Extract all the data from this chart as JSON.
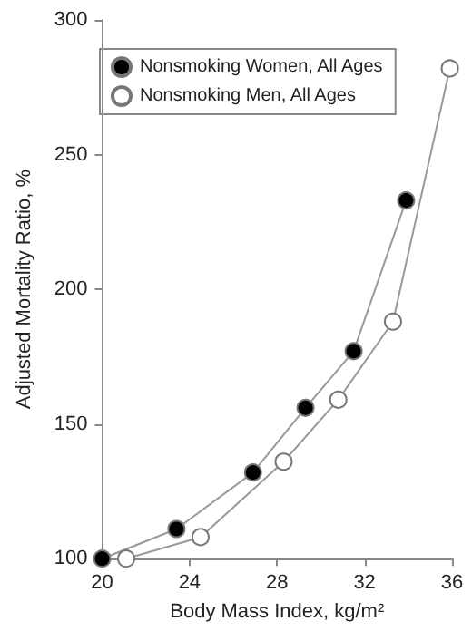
{
  "chart_data": {
    "type": "line",
    "xlabel": "Body Mass Index, kg/m²",
    "ylabel": "Adjusted Mortality Ratio, %",
    "series": [
      {
        "name": "Nonsmoking Women, All Ages",
        "color": "#000000",
        "x": [
          20,
          23.4,
          26.9,
          29.3,
          31.5,
          33.9
        ],
        "values": [
          100,
          111,
          132,
          156,
          177,
          233
        ]
      },
      {
        "name": "Nonsmoking Men, All Ages",
        "color": "#ffffff",
        "x": [
          21.1,
          24.5,
          28.3,
          30.8,
          33.3,
          35.9
        ],
        "values": [
          100,
          108,
          136,
          159,
          188,
          282
        ]
      }
    ],
    "xlim": [
      20,
      36
    ],
    "xticks": [
      20,
      24,
      28,
      32,
      36
    ],
    "ylim": [
      100,
      300
    ],
    "yticks": [
      100,
      150,
      200,
      250,
      300
    ],
    "grid": false,
    "legend": "top left",
    "marker": "circle",
    "line_style": "solid"
  }
}
